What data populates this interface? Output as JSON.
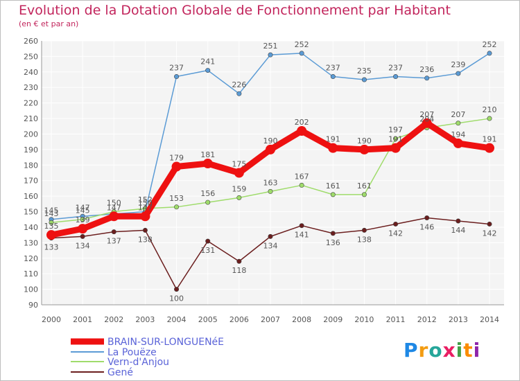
{
  "chart_data": {
    "type": "line",
    "title": "Evolution de la Dotation Globale de Fonctionnement par Habitant",
    "subtitle": "(en € et par an)",
    "x": [
      "2000",
      "2001",
      "2002",
      "2003",
      "2004",
      "2005",
      "2006",
      "2007",
      "2008",
      "2009",
      "2010",
      "2011",
      "2012",
      "2013",
      "2014"
    ],
    "ylim": [
      90,
      260
    ],
    "yticks": [
      "90",
      "100",
      "110",
      "120",
      "130",
      "140",
      "150",
      "160",
      "170",
      "180",
      "190",
      "200",
      "210",
      "220",
      "230",
      "240",
      "250",
      "260"
    ],
    "grid": true,
    "legend_position": "bottom-left",
    "series": [
      {
        "name": "BRAIN-SUR-LONGUENéE",
        "color": "#ee1111",
        "values": [
          135,
          139,
          147,
          147,
          179,
          181,
          175,
          190,
          202,
          191,
          190,
          191,
          207,
          194,
          191
        ]
      },
      {
        "name": "La Pouëze",
        "color": "#5b9bd5",
        "values": [
          145,
          147,
          null,
          150,
          237,
          241,
          226,
          251,
          252,
          237,
          235,
          237,
          236,
          239,
          252
        ]
      },
      {
        "name": "Vern-d'Anjou",
        "color": "#9fdc6b",
        "values": [
          143,
          145,
          150,
          152,
          153,
          156,
          159,
          163,
          167,
          161,
          161,
          197,
          204,
          207,
          210
        ]
      },
      {
        "name": "Gené",
        "color": "#6b1e1e",
        "values": [
          133,
          134,
          137,
          138,
          100,
          131,
          118,
          134,
          141,
          136,
          138,
          142,
          146,
          144,
          142
        ]
      }
    ]
  },
  "logo": {
    "text": "Proxiti"
  }
}
